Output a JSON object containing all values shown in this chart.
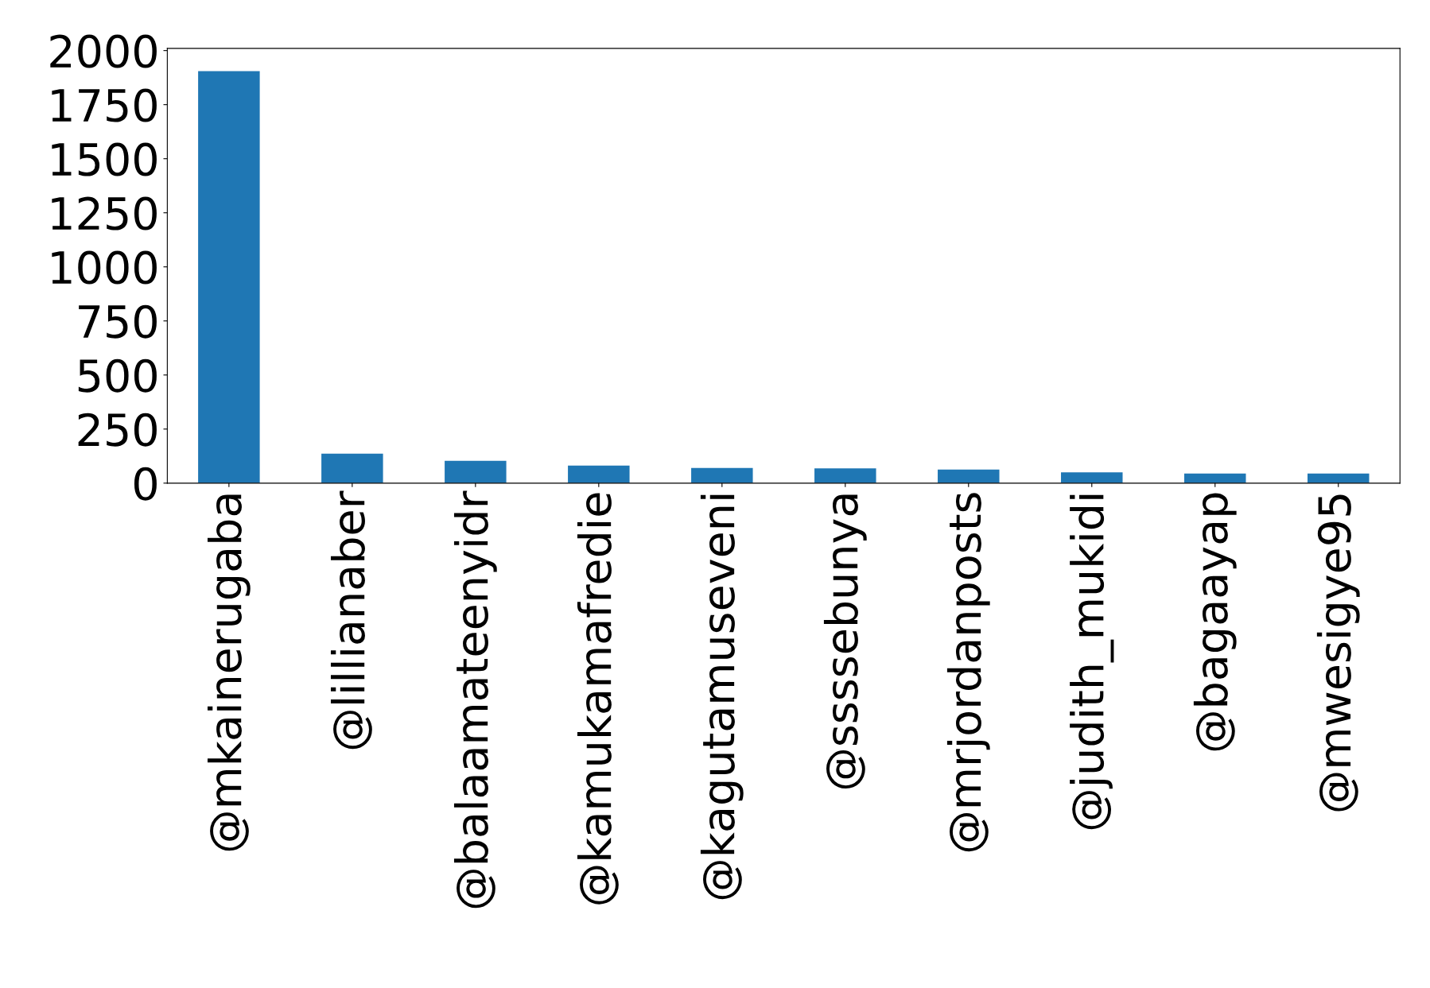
{
  "chart_data": {
    "type": "bar",
    "categories": [
      "@mkainerugaba",
      "@lillianaber",
      "@balaamateenyidr",
      "@kamukamafredie",
      "@kagutamuseveni",
      "@ssssebunya",
      "@mrjordanposts",
      "@judith_mukidi",
      "@bagaayap",
      "@mwesigye95"
    ],
    "values": [
      1905,
      136,
      103,
      81,
      70,
      68,
      63,
      50,
      44,
      44
    ],
    "color": "#1f77b4",
    "ylim": [
      0,
      2010
    ],
    "yticks": [
      0,
      250,
      500,
      750,
      1000,
      1250,
      1500,
      1750,
      2000
    ],
    "grid": false,
    "legend": false
  }
}
